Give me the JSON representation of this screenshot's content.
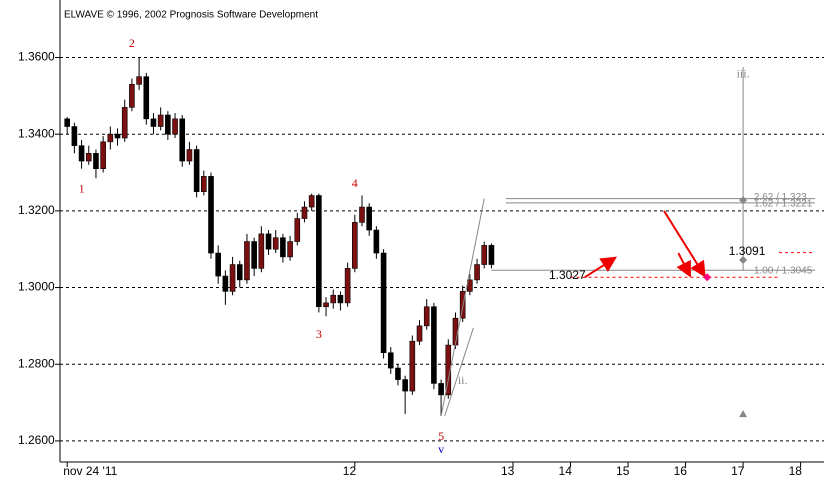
{
  "chart_data": {
    "type": "candlestick",
    "title": "ELWAVE © 1996, 2002 Prognosis Software Development",
    "ylim": [
      1.2545,
      1.375
    ],
    "yticks": [
      {
        "value": 1.26,
        "label": "1.2600"
      },
      {
        "value": 1.28,
        "label": "1.2800"
      },
      {
        "value": 1.3,
        "label": "1.3000"
      },
      {
        "value": 1.32,
        "label": "1.3200"
      },
      {
        "value": 1.34,
        "label": "1.3400"
      },
      {
        "value": 1.36,
        "label": "1.3600"
      }
    ],
    "xlim": [
      -1,
      104
    ],
    "xticks": [
      {
        "value": 0,
        "label": "nov 24 '11"
      },
      {
        "value": 40,
        "label": "12"
      },
      {
        "value": 62,
        "label": "13"
      },
      {
        "value": 70,
        "label": "14"
      },
      {
        "value": 78,
        "label": "15"
      },
      {
        "value": 86,
        "label": "16"
      },
      {
        "value": 94,
        "label": "17"
      },
      {
        "value": 102,
        "label": "18"
      }
    ],
    "grid": true,
    "up_color": "#7a1010",
    "down_color": "#000000",
    "ohlc": [
      [
        1.344,
        1.3445,
        1.34,
        1.342
      ],
      [
        1.342,
        1.343,
        1.335,
        1.337
      ],
      [
        1.337,
        1.3385,
        1.331,
        1.333
      ],
      [
        1.333,
        1.337,
        1.332,
        1.335
      ],
      [
        1.335,
        1.336,
        1.3285,
        1.331
      ],
      [
        1.331,
        1.3395,
        1.33,
        1.338
      ],
      [
        1.338,
        1.342,
        1.336,
        1.34
      ],
      [
        1.34,
        1.3415,
        1.337,
        1.339
      ],
      [
        1.339,
        1.349,
        1.338,
        1.347
      ],
      [
        1.347,
        1.3545,
        1.346,
        1.353
      ],
      [
        1.353,
        1.36,
        1.3515,
        1.355
      ],
      [
        1.355,
        1.356,
        1.3425,
        1.344
      ],
      [
        1.344,
        1.3455,
        1.34,
        1.342
      ],
      [
        1.342,
        1.347,
        1.341,
        1.345
      ],
      [
        1.345,
        1.346,
        1.3385,
        1.34
      ],
      [
        1.34,
        1.3455,
        1.339,
        1.344
      ],
      [
        1.344,
        1.345,
        1.3315,
        1.333
      ],
      [
        1.333,
        1.338,
        1.332,
        1.336
      ],
      [
        1.336,
        1.337,
        1.3235,
        1.325
      ],
      [
        1.325,
        1.3305,
        1.324,
        1.329
      ],
      [
        1.329,
        1.33,
        1.3075,
        1.309
      ],
      [
        1.309,
        1.311,
        1.301,
        1.303
      ],
      [
        1.303,
        1.3045,
        1.2955,
        1.299
      ],
      [
        1.299,
        1.308,
        1.298,
        1.306
      ],
      [
        1.306,
        1.307,
        1.3,
        1.302
      ],
      [
        1.302,
        1.314,
        1.301,
        1.312
      ],
      [
        1.312,
        1.313,
        1.303,
        1.305
      ],
      [
        1.305,
        1.316,
        1.304,
        1.314
      ],
      [
        1.314,
        1.315,
        1.3085,
        1.31
      ],
      [
        1.31,
        1.315,
        1.309,
        1.313
      ],
      [
        1.313,
        1.314,
        1.3065,
        1.308
      ],
      [
        1.308,
        1.3135,
        1.307,
        1.312
      ],
      [
        1.312,
        1.3195,
        1.311,
        1.318
      ],
      [
        1.318,
        1.3225,
        1.317,
        1.321
      ],
      [
        1.321,
        1.3245,
        1.32,
        1.324
      ],
      [
        1.324,
        1.3245,
        1.2935,
        1.295
      ],
      [
        1.295,
        1.2975,
        1.2925,
        1.296
      ],
      [
        1.296,
        1.2995,
        1.2945,
        1.298
      ],
      [
        1.298,
        1.299,
        1.294,
        1.296
      ],
      [
        1.296,
        1.3065,
        1.295,
        1.305
      ],
      [
        1.305,
        1.319,
        1.304,
        1.317
      ],
      [
        1.317,
        1.324,
        1.316,
        1.321
      ],
      [
        1.321,
        1.322,
        1.3135,
        1.315
      ],
      [
        1.315,
        1.316,
        1.3075,
        1.309
      ],
      [
        1.309,
        1.31,
        1.2815,
        1.283
      ],
      [
        1.283,
        1.2845,
        1.2775,
        1.279
      ],
      [
        1.279,
        1.28,
        1.2745,
        1.276
      ],
      [
        1.276,
        1.277,
        1.267,
        1.273
      ],
      [
        1.273,
        1.2875,
        1.272,
        1.286
      ],
      [
        1.286,
        1.2915,
        1.285,
        1.29
      ],
      [
        1.29,
        1.297,
        1.289,
        1.295
      ],
      [
        1.295,
        1.296,
        1.2735,
        1.275
      ],
      [
        1.275,
        1.276,
        1.2665,
        1.272
      ],
      [
        1.272,
        1.2865,
        1.271,
        1.285
      ],
      [
        1.285,
        1.2935,
        1.284,
        1.292
      ],
      [
        1.292,
        1.3005,
        1.291,
        1.299
      ],
      [
        1.299,
        1.3035,
        1.298,
        1.302
      ],
      [
        1.302,
        1.3075,
        1.301,
        1.306
      ],
      [
        1.306,
        1.312,
        1.305,
        1.311
      ],
      [
        1.311,
        1.3115,
        1.305,
        1.306
      ]
    ],
    "texts": [
      {
        "text": "1",
        "x": 2,
        "y": 1.3255,
        "color": "#cc0000"
      },
      {
        "text": "2",
        "x": 9,
        "y": 1.3635,
        "color": "#cc0000"
      },
      {
        "text": "3",
        "x": 35,
        "y": 1.2875,
        "color": "#cc0000"
      },
      {
        "text": "4",
        "x": 40,
        "y": 1.327,
        "color": "#cc0000"
      },
      {
        "text": "5",
        "x": 52,
        "y": 1.261,
        "color": "#cc0000"
      },
      {
        "text": "v",
        "x": 52,
        "y": 1.2575,
        "color": "#0000cc"
      },
      {
        "text": "ii.",
        "x": 55,
        "y": 1.2755,
        "color": "#888888"
      },
      {
        "text": "iii.",
        "x": 94,
        "y": 1.3555,
        "color": "#888888"
      },
      {
        "text": "1.3027",
        "x": 67,
        "y": 1.303,
        "color": "#000000"
      },
      {
        "text": "1.3091",
        "x": 92,
        "y": 1.3093,
        "color": "#000000"
      },
      {
        "text": "2.62 / 1.323",
        "x": 95.5,
        "y": 1.3235,
        "color": "#888888"
      },
      {
        "text": "1.62 / 1.3221",
        "x": 95.5,
        "y": 1.3218,
        "color": "#888888"
      },
      {
        "text": "1.00 / 1.3045",
        "x": 95.5,
        "y": 1.3043,
        "color": "#888888"
      }
    ],
    "lines": [
      {
        "x": [
          61,
          104
        ],
        "y": [
          1.3232,
          1.3232
        ],
        "color": "#888888"
      },
      {
        "x": [
          61,
          104
        ],
        "y": [
          1.3221,
          1.3221
        ],
        "color": "#888888"
      },
      {
        "x": [
          59,
          104
        ],
        "y": [
          1.3045,
          1.3045
        ],
        "color": "#888888"
      },
      {
        "x": [
          52,
          58
        ],
        "y": [
          1.2665,
          1.3232
        ],
        "color": "#888888"
      },
      {
        "x": [
          52.5,
          56.5
        ],
        "y": [
          1.2665,
          1.2895
        ],
        "color": "#888888"
      },
      {
        "x": [
          94,
          94
        ],
        "y": [
          1.3575,
          1.3045
        ],
        "color": "#888888"
      },
      {
        "x": [
          70,
          99
        ],
        "y": [
          1.3027,
          1.3027
        ],
        "color": "#ff0000",
        "dash": true
      },
      {
        "x": [
          99,
          104
        ],
        "y": [
          1.3091,
          1.3091
        ],
        "color": "#ff0000",
        "dash": true
      }
    ],
    "arrows": [
      {
        "x": [
          72,
          76
        ],
        "y": [
          1.3027,
          1.3075
        ]
      },
      {
        "x": [
          85,
          86.5
        ],
        "y": [
          1.309,
          1.3035
        ]
      },
      {
        "x": [
          83,
          88.5
        ],
        "y": [
          1.32,
          1.3035
        ]
      }
    ],
    "markers": [
      {
        "x": 94,
        "y": 1.3228,
        "shape": "diamond",
        "color": "#888888"
      },
      {
        "x": 94,
        "y": 1.3072,
        "shape": "diamond",
        "color": "#888888"
      },
      {
        "x": 94,
        "y": 1.267,
        "shape": "triangle",
        "color": "#888888"
      },
      {
        "x": 89,
        "y": 1.3027,
        "shape": "diamond",
        "color": "#ff0080"
      }
    ]
  }
}
